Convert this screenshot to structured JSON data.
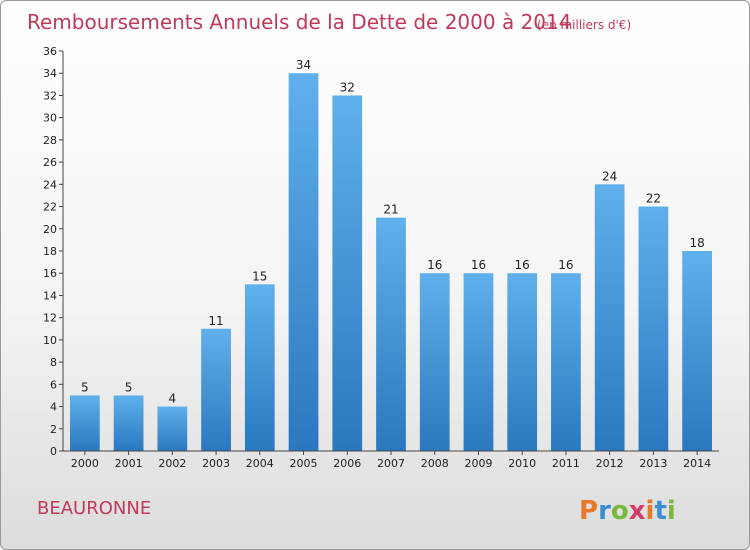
{
  "chart_data": {
    "type": "bar",
    "title": "Remboursements Annuels de la Dette de 2000 à 2014",
    "subtitle": "(en milliers d'€)",
    "categories": [
      "2000",
      "2001",
      "2002",
      "2003",
      "2004",
      "2005",
      "2006",
      "2007",
      "2008",
      "2009",
      "2010",
      "2011",
      "2012",
      "2013",
      "2014"
    ],
    "values": [
      5,
      5,
      4,
      11,
      15,
      34,
      32,
      21,
      16,
      16,
      16,
      16,
      24,
      22,
      18
    ],
    "ylim": [
      0,
      36
    ],
    "yticks": [
      0,
      2,
      4,
      6,
      8,
      10,
      12,
      14,
      16,
      18,
      20,
      22,
      24,
      26,
      28,
      30,
      32,
      34,
      36
    ],
    "grid": false,
    "bar_color": "#3d8fd6"
  },
  "footer": {
    "commune": "BEAURONNE",
    "logo": "Proxiti",
    "logo_colors": [
      "#e8782a",
      "#3b8fd0",
      "#7ab83a",
      "#d43a6a"
    ]
  }
}
